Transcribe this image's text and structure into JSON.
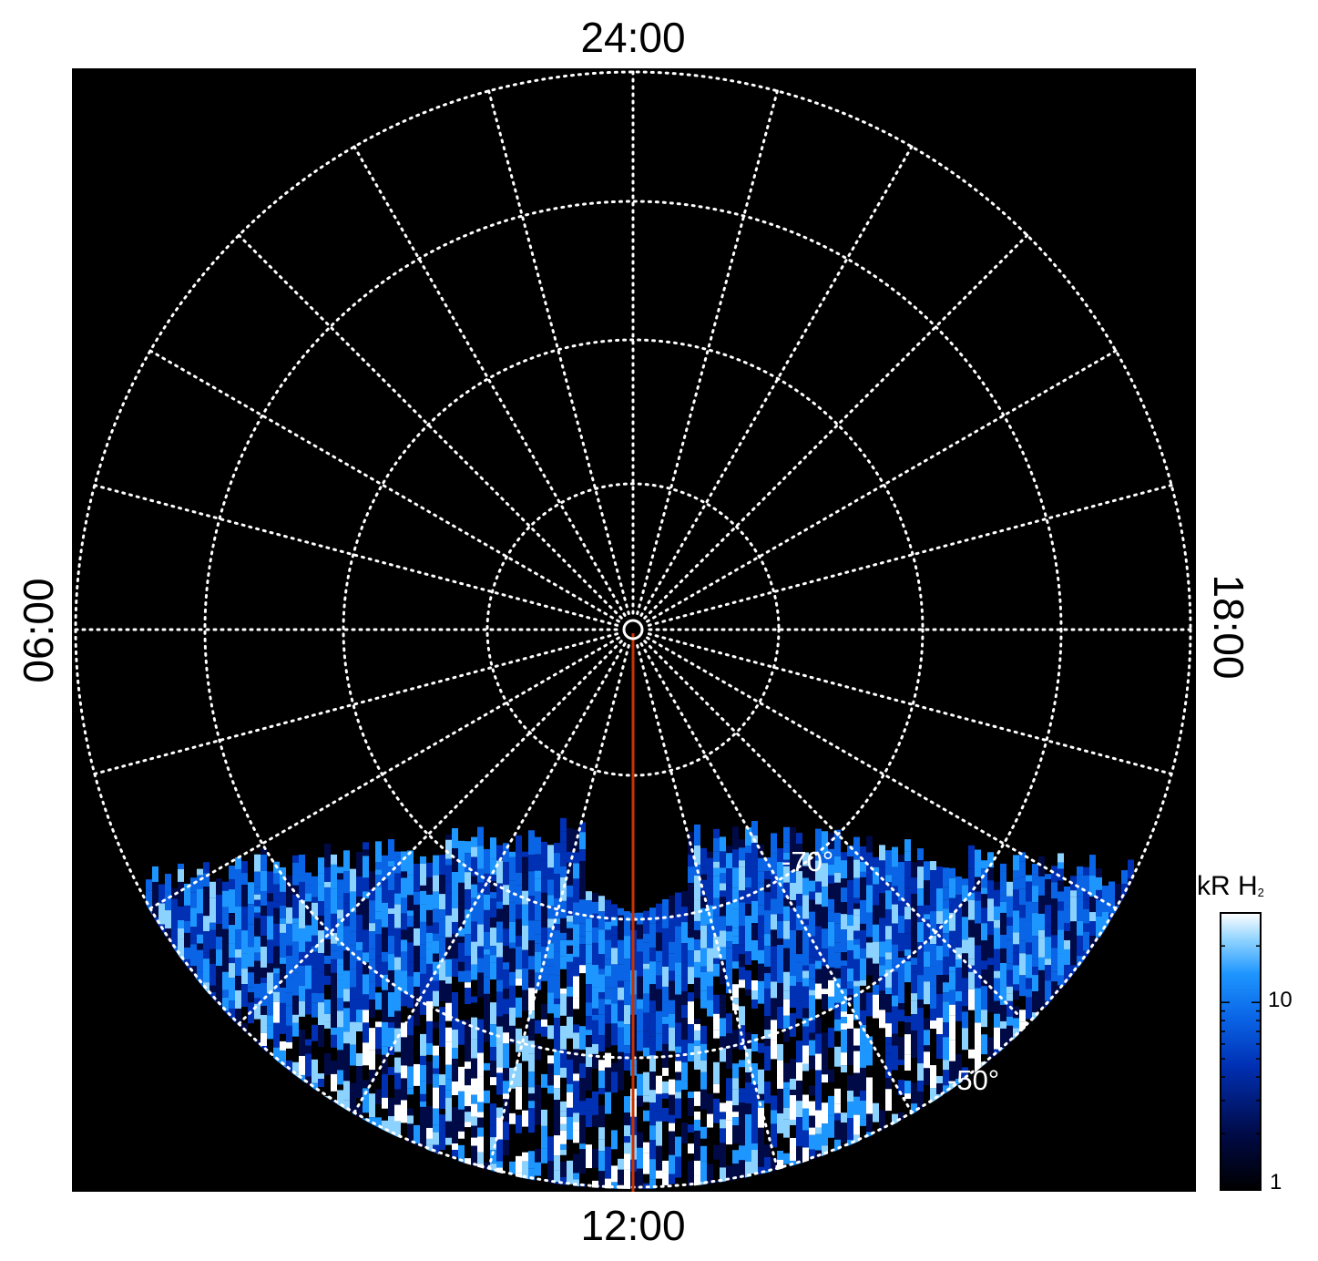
{
  "chart_data": {
    "type": "heatmap",
    "projection": "polar",
    "hemisphere": "south",
    "local_time_labels": [
      "24:00",
      "06:00",
      "12:00",
      "18:00"
    ],
    "latitude_labels": [
      "-70°",
      "-50°"
    ],
    "latitude_circles_deg": [
      -90,
      -80,
      -70,
      -60,
      -50,
      -40
    ],
    "local_time_grid_step_hours": 1,
    "grid": true,
    "grid_style": "dotted white",
    "background_color": "#000000",
    "meridian_line": {
      "local_time": "12:00",
      "color": "#c83200"
    },
    "data_coverage": "dayside, roughly -78° to -40° latitude",
    "colorbar": {
      "title": "kR H",
      "title_subscript": "2",
      "scale": "log",
      "range": [
        1,
        30
      ],
      "ticks": [
        {
          "value": 10,
          "label": "10"
        },
        {
          "value": 1,
          "label": "1"
        }
      ],
      "colors": [
        "#000000",
        "#000a46",
        "#0030b4",
        "#0a64e6",
        "#1e96ff",
        "#8cd2ff",
        "#ffffff"
      ]
    }
  }
}
